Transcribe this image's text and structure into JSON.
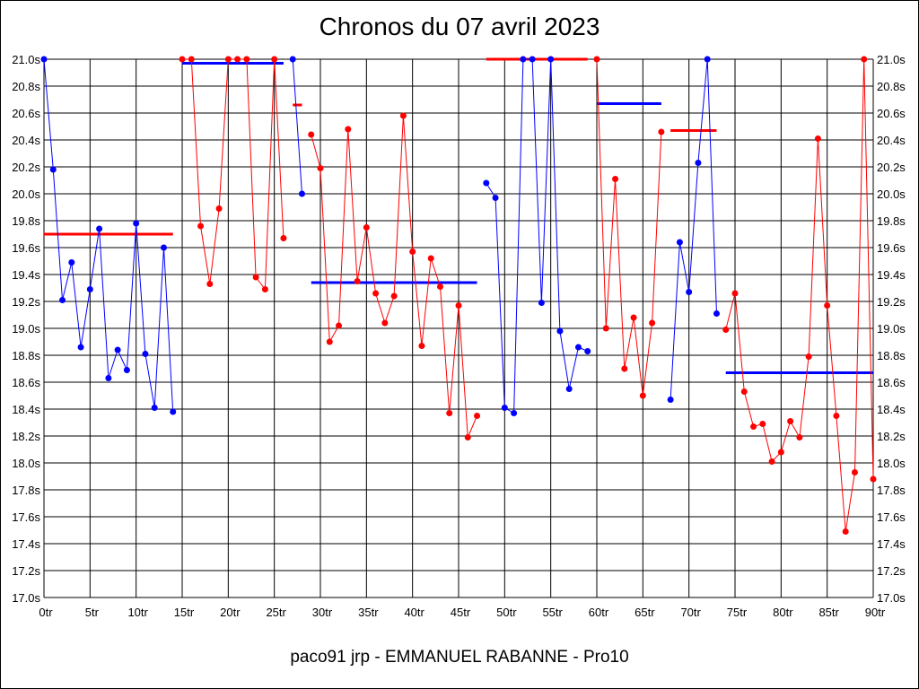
{
  "chart_data": {
    "type": "line",
    "title": "Chronos du 07 avril 2023",
    "footer": "paco91 jrp - EMMANUEL RABANNE - Pro10",
    "xlim": [
      0,
      90
    ],
    "ylim": [
      17.0,
      21.0
    ],
    "grid": true,
    "x_ticks": [
      0,
      5,
      10,
      15,
      20,
      25,
      30,
      35,
      40,
      45,
      50,
      55,
      60,
      65,
      70,
      75,
      80,
      85,
      90
    ],
    "x_tick_labels": [
      "0tr",
      "5tr",
      "10tr",
      "15tr",
      "20tr",
      "25tr",
      "30tr",
      "35tr",
      "40tr",
      "45tr",
      "50tr",
      "55tr",
      "60tr",
      "65tr",
      "70tr",
      "75tr",
      "80tr",
      "85tr",
      "90tr"
    ],
    "y_ticks": [
      17.0,
      17.2,
      17.4,
      17.6,
      17.8,
      18.0,
      18.2,
      18.4,
      18.6,
      18.8,
      19.0,
      19.2,
      19.4,
      19.6,
      19.8,
      20.0,
      20.2,
      20.4,
      20.6,
      20.8,
      21.0
    ],
    "y_tick_labels": [
      "17.0s",
      "17.2s",
      "17.4s",
      "17.6s",
      "17.8s",
      "18.0s",
      "18.2s",
      "18.4s",
      "18.6s",
      "18.8s",
      "19.0s",
      "19.2s",
      "19.4s",
      "19.6s",
      "19.8s",
      "20.0s",
      "20.2s",
      "20.4s",
      "20.6s",
      "20.8s",
      "21.0s"
    ],
    "colors": {
      "blue": "#0000ff",
      "red": "#ff0000"
    },
    "series": [
      {
        "color": "#0000ff",
        "points": [
          [
            0,
            21.0
          ],
          [
            1,
            20.18
          ],
          [
            2,
            19.21
          ],
          [
            3,
            19.49
          ],
          [
            4,
            18.86
          ],
          [
            5,
            19.29
          ],
          [
            6,
            19.74
          ],
          [
            7,
            18.63
          ],
          [
            8,
            18.84
          ],
          [
            9,
            18.69
          ],
          [
            10,
            19.78
          ],
          [
            11,
            18.81
          ],
          [
            12,
            18.41
          ],
          [
            13,
            19.6
          ],
          [
            14,
            18.38
          ]
        ]
      },
      {
        "color": "#ff0000",
        "points": [
          [
            15,
            21.0
          ],
          [
            16,
            21.0
          ],
          [
            17,
            19.76
          ],
          [
            18,
            19.33
          ],
          [
            19,
            19.89
          ],
          [
            20,
            21.0
          ],
          [
            21,
            21.0
          ],
          [
            22,
            21.0
          ],
          [
            23,
            19.38
          ],
          [
            24,
            19.29
          ],
          [
            25,
            21.0
          ],
          [
            26,
            19.67
          ]
        ]
      },
      {
        "color": "#0000ff",
        "points": [
          [
            27,
            21.0
          ],
          [
            28,
            20.0
          ]
        ]
      },
      {
        "color": "#ff0000",
        "points": [
          [
            29,
            20.44
          ],
          [
            30,
            20.19
          ],
          [
            31,
            18.9
          ],
          [
            32,
            19.02
          ],
          [
            33,
            20.48
          ],
          [
            34,
            19.35
          ],
          [
            35,
            19.75
          ],
          [
            36,
            19.26
          ],
          [
            37,
            19.04
          ],
          [
            38,
            19.24
          ],
          [
            39,
            20.58
          ],
          [
            40,
            19.57
          ],
          [
            41,
            18.87
          ],
          [
            42,
            19.52
          ],
          [
            43,
            19.31
          ],
          [
            44,
            18.37
          ],
          [
            45,
            19.17
          ],
          [
            46,
            18.19
          ],
          [
            47,
            18.35
          ]
        ]
      },
      {
        "color": "#0000ff",
        "points": [
          [
            48,
            20.08
          ],
          [
            49,
            19.97
          ],
          [
            50,
            18.41
          ],
          [
            51,
            18.37
          ],
          [
            52,
            21.0
          ],
          [
            53,
            21.0
          ],
          [
            54,
            19.19
          ],
          [
            55,
            21.0
          ],
          [
            56,
            18.98
          ],
          [
            57,
            18.55
          ],
          [
            58,
            18.86
          ],
          [
            59,
            18.83
          ]
        ]
      },
      {
        "color": "#ff0000",
        "points": [
          [
            60,
            21.0
          ],
          [
            61,
            19.0
          ],
          [
            62,
            20.11
          ],
          [
            63,
            18.7
          ],
          [
            64,
            19.08
          ],
          [
            65,
            18.5
          ],
          [
            66,
            19.04
          ],
          [
            67,
            20.46
          ]
        ]
      },
      {
        "color": "#0000ff",
        "points": [
          [
            68,
            18.47
          ],
          [
            69,
            19.64
          ],
          [
            70,
            19.27
          ],
          [
            71,
            20.23
          ],
          [
            72,
            21.0
          ],
          [
            73,
            19.11
          ]
        ]
      },
      {
        "color": "#ff0000",
        "points": [
          [
            74,
            18.99
          ],
          [
            75,
            19.26
          ],
          [
            76,
            18.53
          ],
          [
            77,
            18.27
          ],
          [
            78,
            18.29
          ],
          [
            79,
            18.01
          ],
          [
            80,
            18.08
          ],
          [
            81,
            18.31
          ],
          [
            82,
            18.19
          ],
          [
            83,
            18.79
          ],
          [
            84,
            20.41
          ],
          [
            85,
            19.17
          ],
          [
            86,
            18.35
          ],
          [
            87,
            17.49
          ],
          [
            88,
            17.93
          ],
          [
            89,
            21.0
          ],
          [
            90,
            17.88
          ]
        ]
      }
    ],
    "averages": [
      {
        "color": "#ff0000",
        "x": [
          0,
          14
        ],
        "y": 19.7
      },
      {
        "color": "#0000ff",
        "x": [
          15,
          26
        ],
        "y": 20.97
      },
      {
        "color": "#ff0000",
        "x": [
          27,
          28
        ],
        "y": 20.66
      },
      {
        "color": "#0000ff",
        "x": [
          29,
          47
        ],
        "y": 19.34
      },
      {
        "color": "#ff0000",
        "x": [
          48,
          59
        ],
        "y": 21.0
      },
      {
        "color": "#0000ff",
        "x": [
          60,
          67
        ],
        "y": 20.67
      },
      {
        "color": "#ff0000",
        "x": [
          68,
          73
        ],
        "y": 20.47
      },
      {
        "color": "#0000ff",
        "x": [
          74,
          90
        ],
        "y": 18.67
      }
    ]
  }
}
